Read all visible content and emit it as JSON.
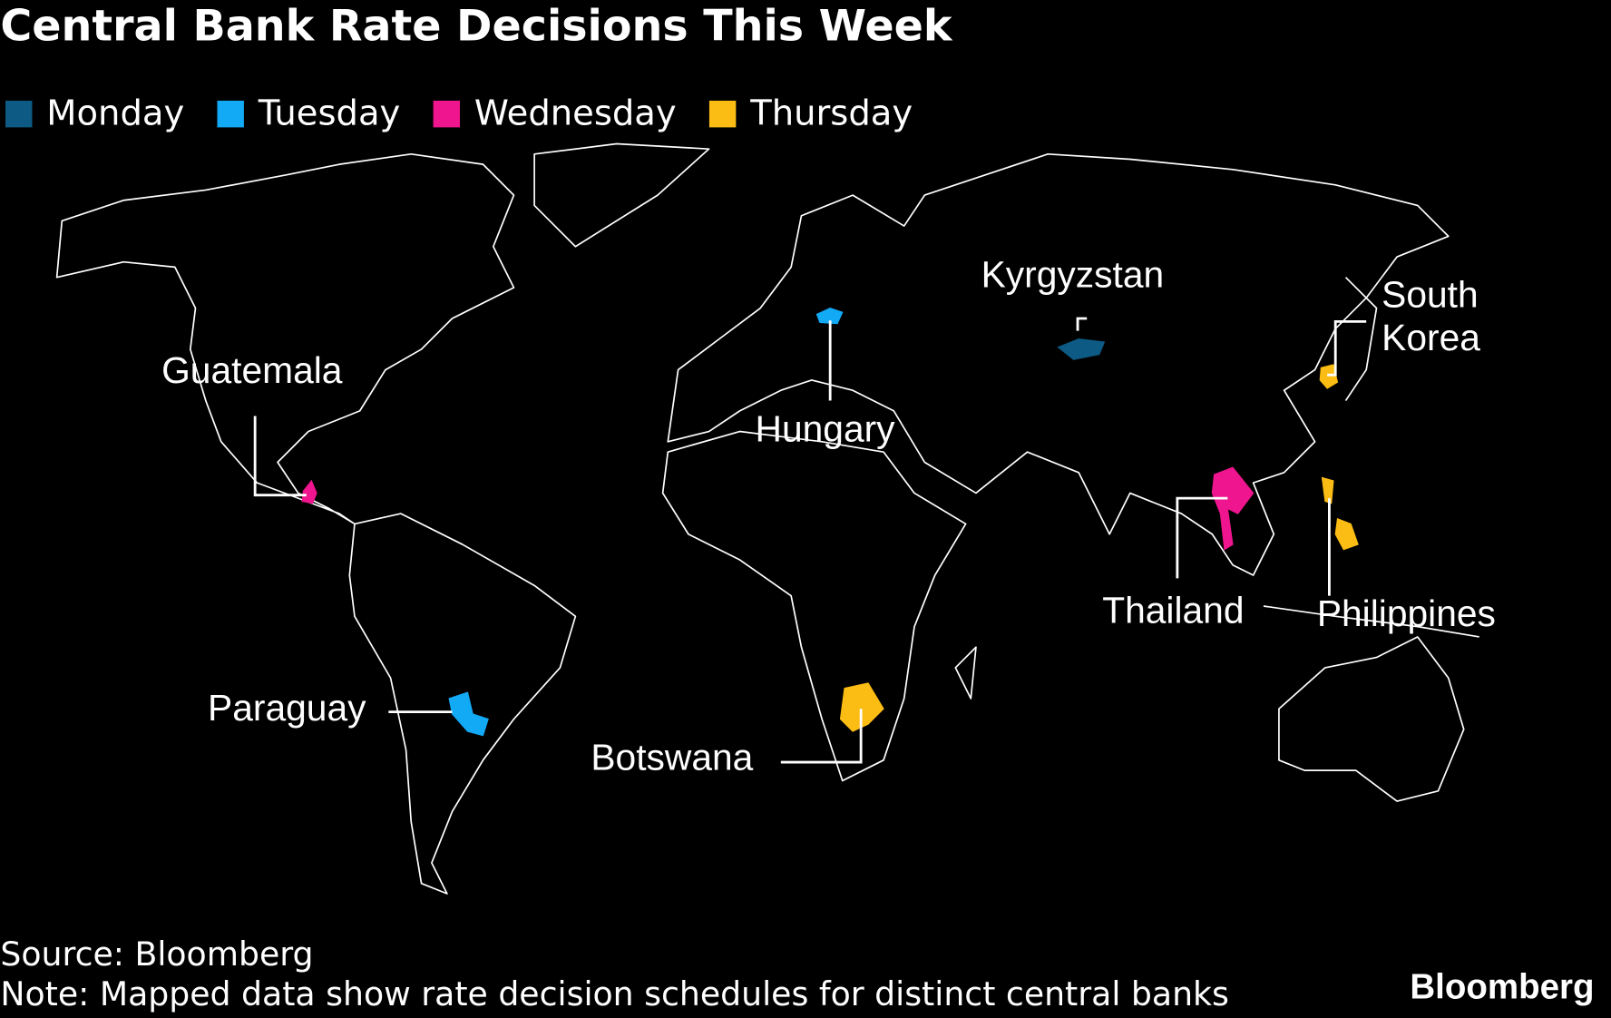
{
  "header": {
    "title": "Central Bank Rate Decisions This Week"
  },
  "legend": [
    {
      "label": "Monday",
      "color": "#0d5a84",
      "countries": [
        "Kyrgyzstan"
      ]
    },
    {
      "label": "Tuesday",
      "color": "#12a9f5",
      "countries": [
        "Hungary",
        "Paraguay"
      ]
    },
    {
      "label": "Wednesday",
      "color": "#ef158e",
      "countries": [
        "Guatemala",
        "Thailand"
      ]
    },
    {
      "label": "Thursday",
      "color": "#fbbd14",
      "countries": [
        "Botswana",
        "South Korea",
        "Philippines"
      ]
    }
  ],
  "footer": {
    "source": "Source: Bloomberg",
    "note": "Note: Mapped data show rate decision schedules for distinct central banks",
    "logo": "Bloomberg"
  }
}
